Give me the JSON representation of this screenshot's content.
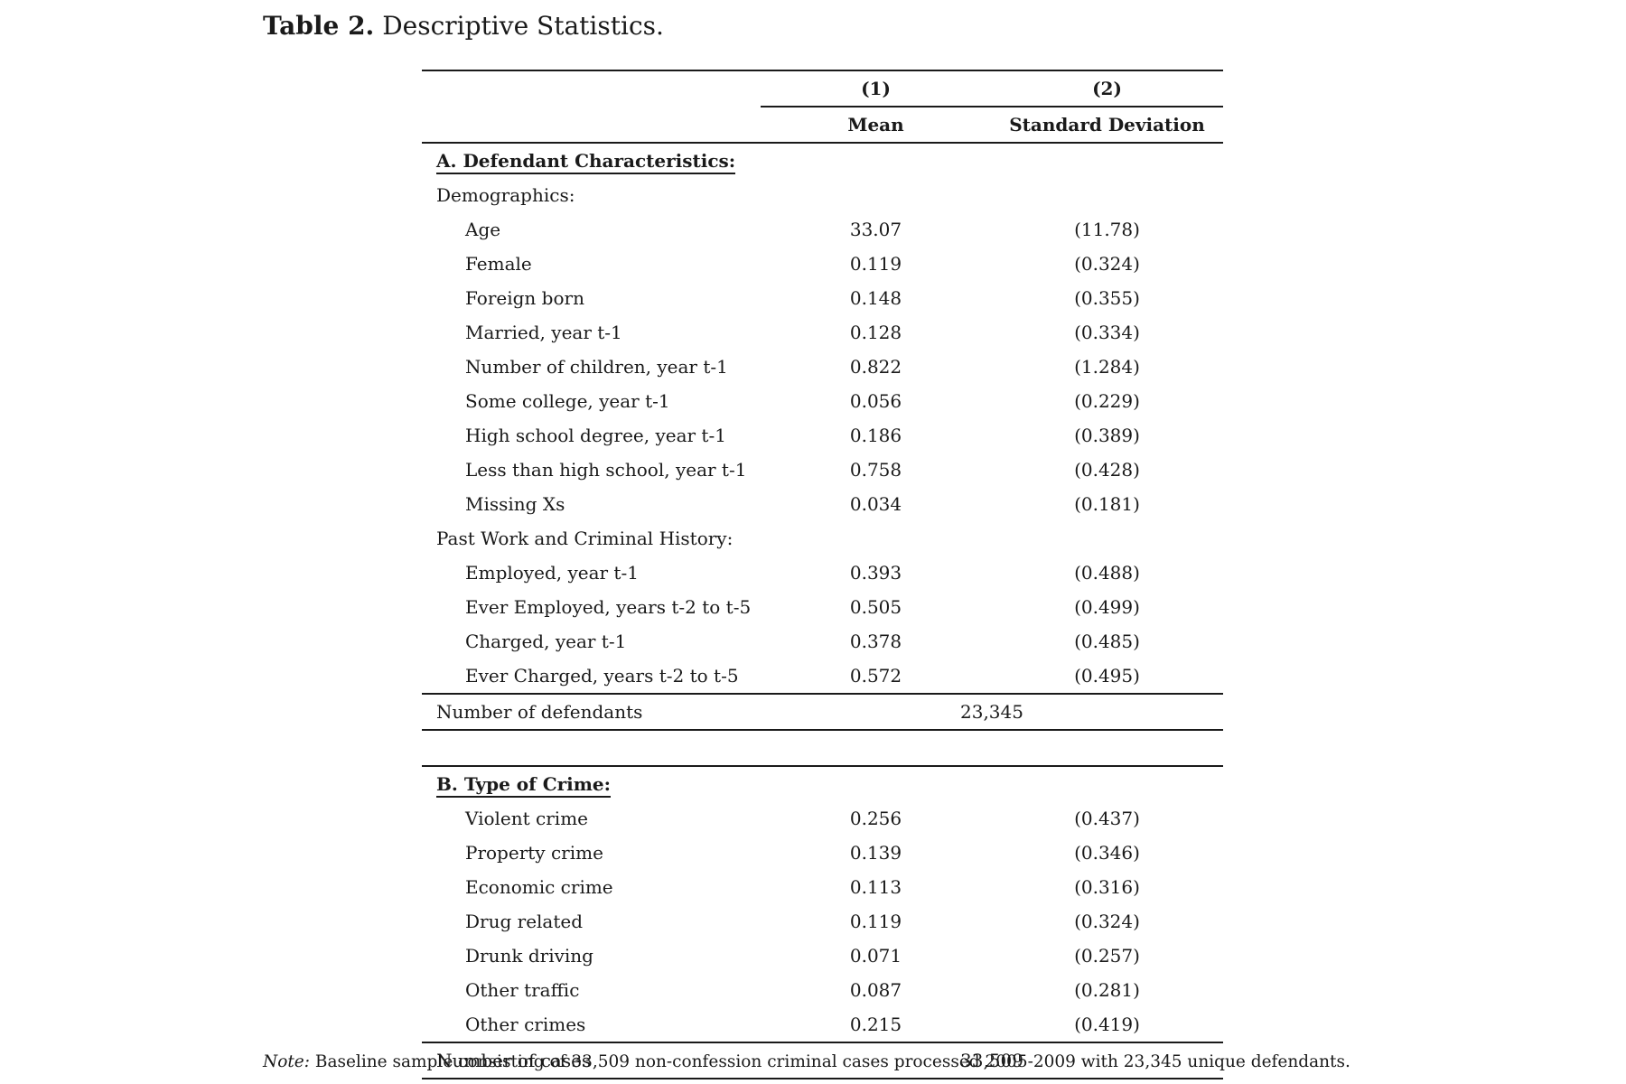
{
  "caption": {
    "label": "Table 2.",
    "title": "Descriptive Statistics."
  },
  "columns": {
    "col1_number": "(1)",
    "col2_number": "(2)",
    "col1_name": "Mean",
    "col2_name": "Standard Deviation"
  },
  "panel_a": {
    "heading": "A. Defendant Characteristics:",
    "groups": [
      {
        "subheading": "Demographics:",
        "rows": [
          {
            "label": "Age",
            "mean": "33.07",
            "sd": "(11.78)"
          },
          {
            "label": "Female",
            "mean": "0.119",
            "sd": "(0.324)"
          },
          {
            "label": "Foreign born",
            "mean": "0.148",
            "sd": "(0.355)"
          },
          {
            "label": "Married, year t-1",
            "mean": "0.128",
            "sd": "(0.334)"
          },
          {
            "label": "Number of children, year t-1",
            "mean": "0.822",
            "sd": "(1.284)"
          },
          {
            "label": "Some college, year t-1",
            "mean": "0.056",
            "sd": "(0.229)"
          },
          {
            "label": "High school degree, year t-1",
            "mean": "0.186",
            "sd": "(0.389)"
          },
          {
            "label": "Less than high school, year t-1",
            "mean": "0.758",
            "sd": "(0.428)"
          },
          {
            "label": "Missing Xs",
            "mean": "0.034",
            "sd": "(0.181)"
          }
        ]
      },
      {
        "subheading": "Past Work and Criminal History:",
        "rows": [
          {
            "label": "Employed, year t-1",
            "mean": "0.393",
            "sd": "(0.488)"
          },
          {
            "label": "Ever Employed, years t-2 to t-5",
            "mean": "0.505",
            "sd": "(0.499)"
          },
          {
            "label": "Charged, year t-1",
            "mean": "0.378",
            "sd": "(0.485)"
          },
          {
            "label": "Ever Charged, years t-2 to t-5",
            "mean": "0.572",
            "sd": "(0.495)"
          }
        ]
      }
    ],
    "total_label": "Number of defendants",
    "total_value": "23,345"
  },
  "panel_b": {
    "heading": "B. Type of Crime:",
    "rows": [
      {
        "label": "Violent crime",
        "mean": "0.256",
        "sd": "(0.437)"
      },
      {
        "label": "Property crime",
        "mean": "0.139",
        "sd": "(0.346)"
      },
      {
        "label": "Economic crime",
        "mean": "0.113",
        "sd": "(0.316)"
      },
      {
        "label": "Drug related",
        "mean": "0.119",
        "sd": "(0.324)"
      },
      {
        "label": "Drunk driving",
        "mean": "0.071",
        "sd": "(0.257)"
      },
      {
        "label": "Other traffic",
        "mean": "0.087",
        "sd": "(0.281)"
      },
      {
        "label": "Other crimes",
        "mean": "0.215",
        "sd": "(0.419)"
      }
    ],
    "total_label": "Number of cases",
    "total_value": "33,509"
  },
  "note": {
    "label": "Note:",
    "text": "Baseline sample consisting of 33,509 non-confession criminal cases processed 2005-2009 with 23,345 unique defendants."
  }
}
